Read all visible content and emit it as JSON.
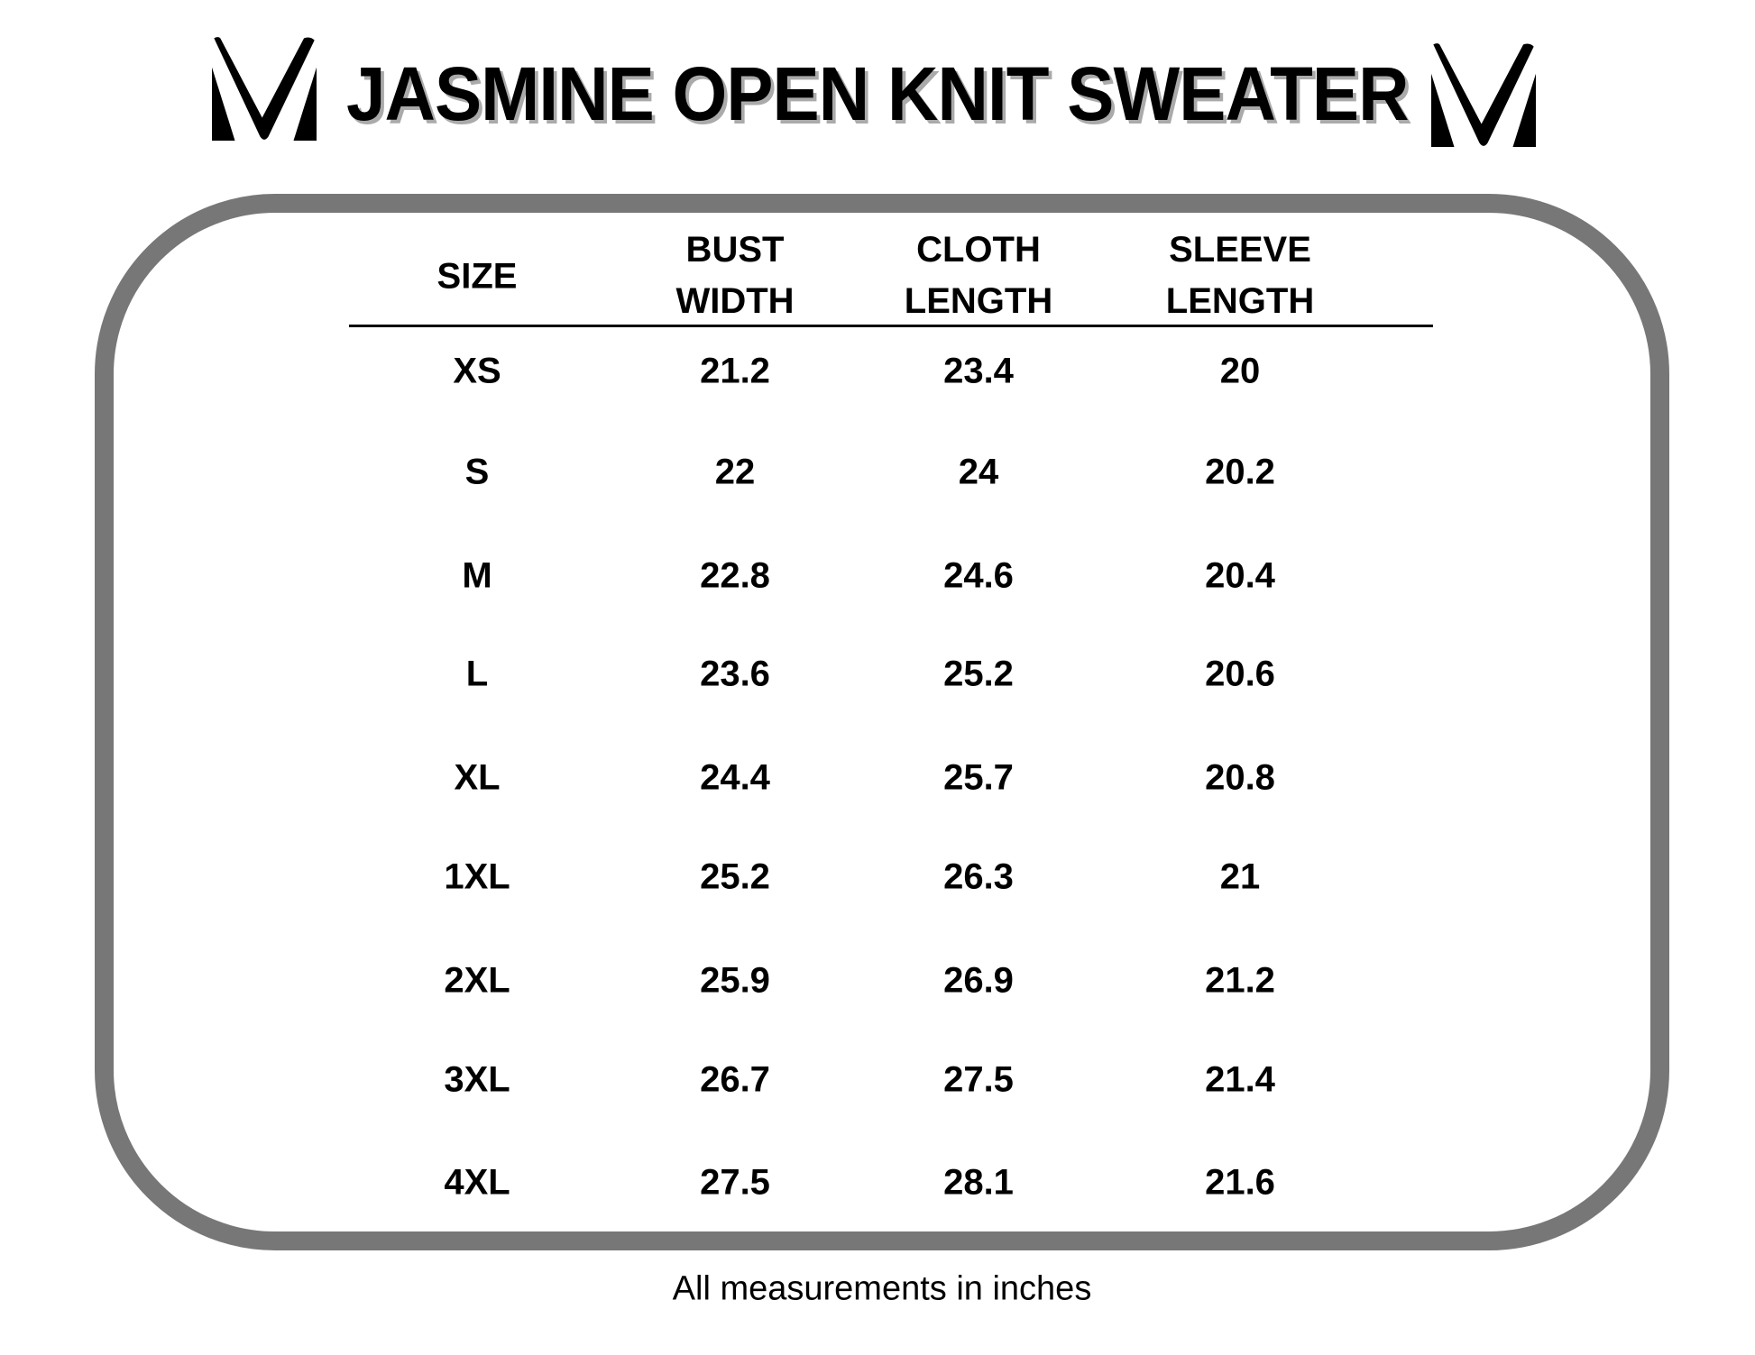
{
  "title": "JASMINE OPEN KNIT SWEATER",
  "logo_icon": "v-chevron-logo-icon",
  "frame_color": "#777777",
  "table": {
    "headers": [
      {
        "line1": "SIZE",
        "line2": ""
      },
      {
        "line1": "BUST",
        "line2": "WIDTH"
      },
      {
        "line1": "CLOTH",
        "line2": "LENGTH"
      },
      {
        "line1": "SLEEVE",
        "line2": "LENGTH"
      }
    ],
    "rows": [
      [
        "XS",
        "21.2",
        "23.4",
        "20"
      ],
      [
        "S",
        "22",
        "24",
        "20.2"
      ],
      [
        "M",
        "22.8",
        "24.6",
        "20.4"
      ],
      [
        "L",
        "23.6",
        "25.2",
        "20.6"
      ],
      [
        "XL",
        "24.4",
        "25.7",
        "20.8"
      ],
      [
        "1XL",
        "25.2",
        "26.3",
        "21"
      ],
      [
        "2XL",
        "25.9",
        "26.9",
        "21.2"
      ],
      [
        "3XL",
        "26.7",
        "27.5",
        "21.4"
      ],
      [
        "4XL",
        "27.5",
        "28.1",
        "21.6"
      ]
    ]
  },
  "footer": "All measurements in inches"
}
